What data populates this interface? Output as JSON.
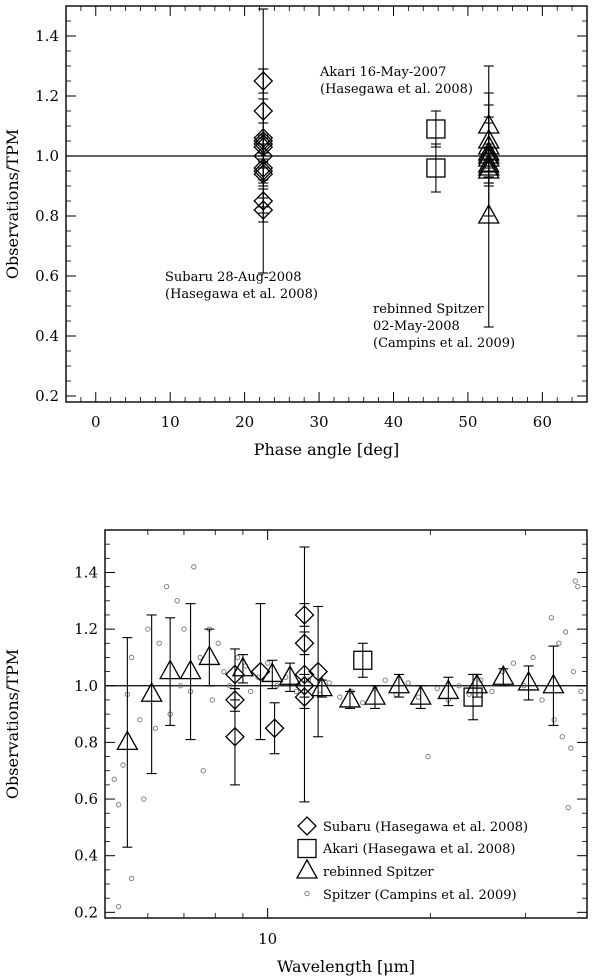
{
  "chart_data": [
    {
      "type": "scatter",
      "xlabel": "Phase angle [deg]",
      "ylabel": "Observations/TPM",
      "xlim": [
        -4,
        66
      ],
      "ylim": [
        0.18,
        1.5
      ],
      "xticks": [
        "0",
        "10",
        "20",
        "30",
        "40",
        "50",
        "60"
      ],
      "yticks": [
        "0.2",
        "0.4",
        "0.6",
        "0.8",
        "1.0",
        "1.2",
        "1.4"
      ],
      "reference_line": 1.0,
      "annotations": [
        {
          "lines": [
            "Akari 16-May-2007",
            "(Hasegawa et al. 2008)"
          ]
        },
        {
          "lines": [
            "Subaru 28-Aug-2008",
            "(Hasegawa et al. 2008)"
          ]
        },
        {
          "lines": [
            "rebinned Spitzer",
            "02-May-2008",
            "(Campins et al. 2009)"
          ]
        }
      ],
      "series": [
        {
          "marker": "diamond",
          "points": [
            {
              "x": 22.5,
              "y": 1.25,
              "err": 0.04
            },
            {
              "x": 22.5,
              "y": 1.15,
              "err": 0.04
            },
            {
              "x": 22.5,
              "y": 1.06,
              "err": 0.23
            },
            {
              "x": 22.5,
              "y": 1.05,
              "err": 0.44
            },
            {
              "x": 22.5,
              "y": 1.04,
              "err": 0.03
            },
            {
              "x": 22.5,
              "y": 1.03,
              "err": 0.03
            },
            {
              "x": 22.5,
              "y": 1.0,
              "err": 0.04
            },
            {
              "x": 22.5,
              "y": 0.96,
              "err": 0.04
            },
            {
              "x": 22.5,
              "y": 0.95,
              "err": 0.04
            },
            {
              "x": 22.5,
              "y": 0.94,
              "err": 0.04
            },
            {
              "x": 22.5,
              "y": 0.85,
              "err": 0.04
            },
            {
              "x": 22.5,
              "y": 0.82,
              "err": 0.04
            }
          ]
        },
        {
          "marker": "square",
          "points": [
            {
              "x": 45.7,
              "y": 1.09,
              "err": 0.06
            },
            {
              "x": 45.7,
              "y": 0.96,
              "err": 0.08
            }
          ]
        },
        {
          "marker": "triangle",
          "points": [
            {
              "x": 52.8,
              "y": 1.1,
              "err": 0.11
            },
            {
              "x": 52.8,
              "y": 1.05,
              "err": 0.25
            },
            {
              "x": 52.8,
              "y": 1.03,
              "err": 0.1
            },
            {
              "x": 52.8,
              "y": 1.01,
              "err": 0.1
            },
            {
              "x": 52.8,
              "y": 1.0,
              "err": 0.04
            },
            {
              "x": 52.8,
              "y": 0.99,
              "err": 0.04
            },
            {
              "x": 52.8,
              "y": 0.97,
              "err": 0.04
            },
            {
              "x": 52.8,
              "y": 0.96,
              "err": 0.06
            },
            {
              "x": 52.8,
              "y": 0.95,
              "err": 0.04
            },
            {
              "x": 52.8,
              "y": 0.8,
              "err": 0.37
            }
          ]
        }
      ]
    },
    {
      "type": "scatter",
      "xlabel": "Wavelength [μm]",
      "ylabel": "Observations/TPM",
      "xscale": "log",
      "xlim": [
        5.0,
        39.0
      ],
      "ylim": [
        0.18,
        1.55
      ],
      "xticks": [
        "10"
      ],
      "yticks": [
        "0.2",
        "0.4",
        "0.6",
        "0.8",
        "1.0",
        "1.2",
        "1.4"
      ],
      "reference_line": 1.0,
      "legend": {
        "placement": "bottom-right",
        "entries": [
          {
            "marker": "diamond",
            "label": "Subaru (Hasegawa et al. 2008)"
          },
          {
            "marker": "square",
            "label": "Akari (Hasegawa et al. 2008)"
          },
          {
            "marker": "triangle",
            "label": "rebinned Spitzer"
          },
          {
            "marker": "circle",
            "label": "Spitzer (Campins et al. 2009)"
          }
        ]
      },
      "series": [
        {
          "name": "Subaru (Hasegawa et al. 2008)",
          "marker": "diamond",
          "points": [
            {
              "x": 8.7,
              "y": 1.04,
              "err": 0.09
            },
            {
              "x": 8.7,
              "y": 0.95,
              "err": 0.04
            },
            {
              "x": 8.7,
              "y": 0.82,
              "err": 0.17
            },
            {
              "x": 9.7,
              "y": 1.05,
              "err": 0.24
            },
            {
              "x": 10.3,
              "y": 0.85,
              "err": 0.09
            },
            {
              "x": 11.7,
              "y": 1.25,
              "err": 0.04
            },
            {
              "x": 11.7,
              "y": 1.15,
              "err": 0.04
            },
            {
              "x": 11.7,
              "y": 1.04,
              "err": 0.45
            },
            {
              "x": 11.7,
              "y": 1.0,
              "err": 0.04
            },
            {
              "x": 11.7,
              "y": 0.96,
              "err": 0.04
            },
            {
              "x": 12.4,
              "y": 1.05,
              "err": 0.23
            }
          ]
        },
        {
          "name": "Akari (Hasegawa et al. 2008)",
          "marker": "square",
          "points": [
            {
              "x": 15.0,
              "y": 1.09,
              "err": 0.06
            },
            {
              "x": 24.0,
              "y": 0.96,
              "err": 0.08
            }
          ]
        },
        {
          "name": "rebinned Spitzer",
          "marker": "triangle",
          "points": [
            {
              "x": 5.5,
              "y": 0.8,
              "err": 0.37
            },
            {
              "x": 6.1,
              "y": 0.97,
              "err": 0.28
            },
            {
              "x": 6.6,
              "y": 1.05,
              "err": 0.19
            },
            {
              "x": 7.2,
              "y": 1.05,
              "err": 0.24
            },
            {
              "x": 7.8,
              "y": 1.1,
              "err": 0.1
            },
            {
              "x": 9.0,
              "y": 1.06,
              "err": 0.05
            },
            {
              "x": 10.2,
              "y": 1.04,
              "err": 0.05
            },
            {
              "x": 11.0,
              "y": 1.03,
              "err": 0.05
            },
            {
              "x": 12.6,
              "y": 0.99,
              "err": 0.03
            },
            {
              "x": 14.2,
              "y": 0.95,
              "err": 0.03
            },
            {
              "x": 15.8,
              "y": 0.96,
              "err": 0.04
            },
            {
              "x": 17.5,
              "y": 1.0,
              "err": 0.04
            },
            {
              "x": 19.2,
              "y": 0.96,
              "err": 0.04
            },
            {
              "x": 21.6,
              "y": 0.98,
              "err": 0.05
            },
            {
              "x": 24.4,
              "y": 1.0,
              "err": 0.04
            },
            {
              "x": 27.3,
              "y": 1.03,
              "err": 0.03
            },
            {
              "x": 30.4,
              "y": 1.01,
              "err": 0.06
            },
            {
              "x": 33.8,
              "y": 1.0,
              "err": 0.14
            }
          ]
        },
        {
          "name": "Spitzer (Campins et al. 2009)",
          "marker": "circle",
          "points": [
            {
              "x": 5.3,
              "y": 0.22
            },
            {
              "x": 5.6,
              "y": 0.32
            },
            {
              "x": 5.3,
              "y": 0.58
            },
            {
              "x": 5.2,
              "y": 0.67
            },
            {
              "x": 5.4,
              "y": 0.72
            },
            {
              "x": 5.5,
              "y": 0.97
            },
            {
              "x": 5.6,
              "y": 1.1
            },
            {
              "x": 5.8,
              "y": 0.88
            },
            {
              "x": 5.9,
              "y": 0.6
            },
            {
              "x": 6.0,
              "y": 1.2
            },
            {
              "x": 6.2,
              "y": 0.85
            },
            {
              "x": 6.3,
              "y": 1.15
            },
            {
              "x": 6.5,
              "y": 1.35
            },
            {
              "x": 6.6,
              "y": 0.9
            },
            {
              "x": 6.8,
              "y": 1.3
            },
            {
              "x": 6.9,
              "y": 1.0
            },
            {
              "x": 7.0,
              "y": 1.2
            },
            {
              "x": 7.2,
              "y": 0.98
            },
            {
              "x": 7.3,
              "y": 1.42
            },
            {
              "x": 7.5,
              "y": 1.1
            },
            {
              "x": 7.6,
              "y": 0.7
            },
            {
              "x": 7.8,
              "y": 1.2
            },
            {
              "x": 7.9,
              "y": 0.95
            },
            {
              "x": 8.1,
              "y": 1.15
            },
            {
              "x": 8.3,
              "y": 1.05
            },
            {
              "x": 8.5,
              "y": 1.0
            },
            {
              "x": 8.8,
              "y": 1.1
            },
            {
              "x": 9.1,
              "y": 1.07
            },
            {
              "x": 9.3,
              "y": 0.98
            },
            {
              "x": 9.6,
              "y": 1.03
            },
            {
              "x": 10.0,
              "y": 1.08
            },
            {
              "x": 10.4,
              "y": 1.0
            },
            {
              "x": 10.8,
              "y": 1.03
            },
            {
              "x": 11.3,
              "y": 0.98
            },
            {
              "x": 11.9,
              "y": 1.02
            },
            {
              "x": 12.5,
              "y": 0.97
            },
            {
              "x": 13.0,
              "y": 1.01
            },
            {
              "x": 13.6,
              "y": 0.96
            },
            {
              "x": 14.3,
              "y": 0.98
            },
            {
              "x": 15.0,
              "y": 0.94
            },
            {
              "x": 15.8,
              "y": 0.99
            },
            {
              "x": 16.5,
              "y": 1.02
            },
            {
              "x": 17.3,
              "y": 0.97
            },
            {
              "x": 18.2,
              "y": 1.01
            },
            {
              "x": 19.0,
              "y": 0.96
            },
            {
              "x": 19.8,
              "y": 0.75
            },
            {
              "x": 20.6,
              "y": 0.99
            },
            {
              "x": 21.6,
              "y": 0.95
            },
            {
              "x": 22.6,
              "y": 1.0
            },
            {
              "x": 23.6,
              "y": 0.97
            },
            {
              "x": 24.8,
              "y": 1.02
            },
            {
              "x": 26.0,
              "y": 0.98
            },
            {
              "x": 27.2,
              "y": 1.05
            },
            {
              "x": 28.5,
              "y": 1.08
            },
            {
              "x": 29.8,
              "y": 1.0
            },
            {
              "x": 31.0,
              "y": 1.1
            },
            {
              "x": 32.2,
              "y": 0.95
            },
            {
              "x": 33.5,
              "y": 1.24
            },
            {
              "x": 33.9,
              "y": 0.88
            },
            {
              "x": 34.6,
              "y": 1.15
            },
            {
              "x": 35.1,
              "y": 0.82
            },
            {
              "x": 35.6,
              "y": 1.19
            },
            {
              "x": 36.0,
              "y": 0.57
            },
            {
              "x": 36.4,
              "y": 0.78
            },
            {
              "x": 36.8,
              "y": 1.05
            },
            {
              "x": 37.1,
              "y": 1.37
            },
            {
              "x": 37.5,
              "y": 1.35
            },
            {
              "x": 38.0,
              "y": 0.98
            }
          ]
        }
      ]
    }
  ]
}
